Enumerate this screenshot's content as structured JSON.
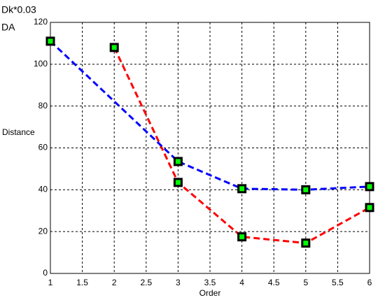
{
  "chart_data": {
    "type": "line",
    "xlabel": "Order",
    "ylabel": "Distance",
    "series": [
      {
        "name": "Dk*0.03",
        "color": "#ff0000",
        "x": [
          2,
          3,
          4,
          5,
          6
        ],
        "values": [
          108,
          43.5,
          17.5,
          14.5,
          31.5
        ]
      },
      {
        "name": "DA",
        "color": "#0000ff",
        "x": [
          1,
          3,
          4,
          5,
          6
        ],
        "values": [
          111,
          53.5,
          40.5,
          40,
          41.5
        ]
      }
    ],
    "xlim": [
      1,
      6
    ],
    "xticks": [
      1,
      1.5,
      2,
      2.5,
      3,
      3.5,
      4,
      4.5,
      5,
      5.5,
      6
    ],
    "ylim": [
      0,
      120
    ],
    "yticks": [
      0,
      20,
      40,
      60,
      80,
      100,
      120
    ],
    "grid": true,
    "marker_color": "#00ff00"
  }
}
